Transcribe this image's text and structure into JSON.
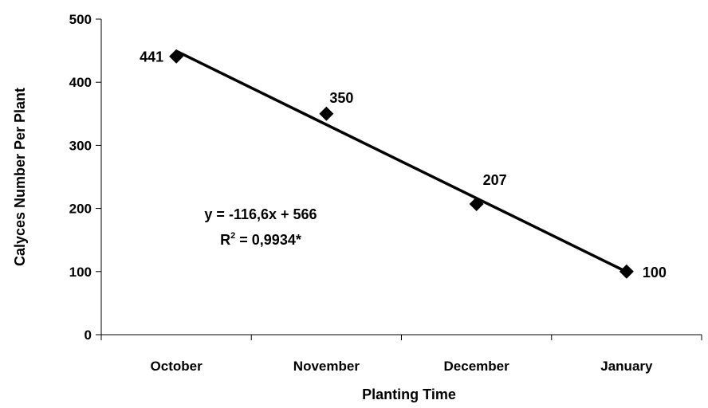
{
  "chart_data": {
    "type": "scatter",
    "categories": [
      "October",
      "November",
      "December",
      "January"
    ],
    "values": [
      441,
      350,
      207,
      100
    ],
    "data_labels": [
      "441",
      "350",
      "207",
      "100"
    ],
    "xlabel": "Planting Time",
    "ylabel": "Calyces Number Per Plant",
    "ylim": [
      0,
      500
    ],
    "yticks": [
      0,
      100,
      200,
      300,
      400,
      500
    ],
    "ytick_labels": [
      "0",
      "100",
      "200",
      "300",
      "400",
      "500"
    ],
    "grid": false,
    "legend": "none",
    "marker": "diamond",
    "trendline": {
      "type": "linear",
      "slope": -116.6,
      "intercept": 566,
      "equation": "y = -116,6x + 566",
      "r2_prefix": "R",
      "r2_exponent": "2",
      "r2_value": " = 0,9934*"
    },
    "colors": {
      "series": "#000000",
      "text": "#000000"
    }
  }
}
